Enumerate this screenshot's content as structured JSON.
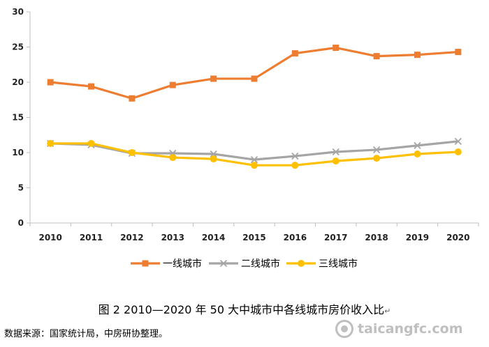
{
  "chart_data": {
    "type": "line",
    "title": "",
    "xlabel": "",
    "ylabel": "",
    "x": [
      "2010",
      "2011",
      "2012",
      "2013",
      "2014",
      "2015",
      "2016",
      "2017",
      "2018",
      "2019",
      "2020"
    ],
    "ylim": [
      0,
      30
    ],
    "yticks": [
      0,
      5,
      10,
      15,
      20,
      25,
      30
    ],
    "grid": false,
    "legend": "bottom",
    "series": [
      {
        "name": "一线城市",
        "color": "#ED7D31",
        "marker": "square",
        "values": [
          20.0,
          19.4,
          17.7,
          19.6,
          20.5,
          20.5,
          24.1,
          24.9,
          23.7,
          23.9,
          24.3
        ]
      },
      {
        "name": "二线城市",
        "color": "#A5A5A5",
        "marker": "x",
        "values": [
          11.3,
          11.1,
          9.9,
          9.9,
          9.8,
          9.0,
          9.5,
          10.1,
          10.4,
          11.0,
          11.6
        ]
      },
      {
        "name": "三线城市",
        "color": "#FFC000",
        "marker": "circle",
        "values": [
          11.3,
          11.3,
          10.0,
          9.3,
          9.1,
          8.2,
          8.2,
          8.8,
          9.2,
          9.8,
          10.1
        ]
      }
    ]
  },
  "caption": {
    "text": "图 2   2010—2020 年 50 大中城市中各线城市房价收入比",
    "mark": "↵"
  },
  "source": "数据来源：国家统计局，中房研协整理。",
  "watermark": "taicangfc.com"
}
